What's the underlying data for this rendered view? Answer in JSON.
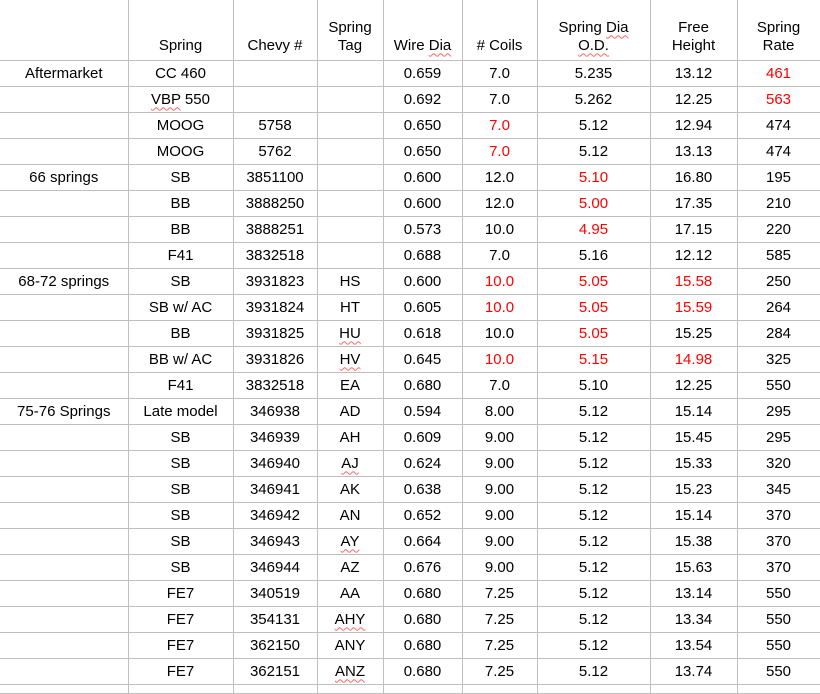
{
  "app": {
    "title": "Chevy spring specifications spreadsheet",
    "colors": {
      "gridline": "#bfbfbf",
      "highlight_red": "#ff0000",
      "spellcheck_squiggle": "#ff6666",
      "text": "#000000",
      "background": "#ffffff"
    }
  },
  "table": {
    "headers": [
      {
        "name": "group",
        "lines": [
          [
            {
              "t": ""
            }
          ]
        ]
      },
      {
        "name": "spring",
        "lines": [
          [
            {
              "t": "Spring"
            }
          ]
        ]
      },
      {
        "name": "chevy-number",
        "lines": [
          [
            {
              "t": "Chevy #"
            }
          ]
        ]
      },
      {
        "name": "spring-tag",
        "lines": [
          [
            {
              "t": "Spring"
            }
          ],
          [
            {
              "t": "Tag"
            }
          ]
        ]
      },
      {
        "name": "wire-dia",
        "lines": [
          [
            {
              "t": "Wire "
            },
            {
              "t": "Dia",
              "sq": true
            }
          ]
        ]
      },
      {
        "name": "num-coils",
        "lines": [
          [
            {
              "t": "# Coils"
            }
          ]
        ]
      },
      {
        "name": "spring-dia-od",
        "lines": [
          [
            {
              "t": "Spring "
            },
            {
              "t": "Dia",
              "sq": true
            }
          ],
          [
            {
              "t": "O.D.",
              "sq": true
            }
          ]
        ]
      },
      {
        "name": "free-height",
        "lines": [
          [
            {
              "t": "Free"
            }
          ],
          [
            {
              "t": "Height"
            }
          ]
        ]
      },
      {
        "name": "spring-rate",
        "lines": [
          [
            {
              "t": "Spring"
            }
          ],
          [
            {
              "t": "Rate"
            }
          ]
        ]
      }
    ],
    "rows": [
      [
        "Aftermarket",
        "CC 460",
        "",
        "",
        "0.659",
        "7.0",
        "5.235",
        "13.12",
        {
          "t": "461",
          "cls": "red"
        }
      ],
      [
        "",
        {
          "parts": [
            {
              "t": "VBP",
              "sq": true
            },
            {
              "t": " 550"
            }
          ]
        },
        "",
        "",
        "0.692",
        "7.0",
        "5.262",
        "12.25",
        {
          "t": "563",
          "cls": "red"
        }
      ],
      [
        "",
        "MOOG",
        "5758",
        "",
        "0.650",
        {
          "t": "7.0",
          "cls": "red"
        },
        "5.12",
        "12.94",
        "474"
      ],
      [
        "",
        "MOOG",
        "5762",
        "",
        "0.650",
        {
          "t": "7.0",
          "cls": "red"
        },
        "5.12",
        "13.13",
        "474"
      ],
      [
        "66 springs",
        "SB",
        "3851100",
        "",
        "0.600",
        "12.0",
        {
          "t": "5.10",
          "cls": "red"
        },
        "16.80",
        "195"
      ],
      [
        "",
        "BB",
        "3888250",
        "",
        "0.600",
        "12.0",
        {
          "t": "5.00",
          "cls": "red"
        },
        "17.35",
        "210"
      ],
      [
        "",
        "BB",
        "3888251",
        "",
        "0.573",
        "10.0",
        {
          "t": "4.95",
          "cls": "red"
        },
        "17.15",
        "220"
      ],
      [
        "",
        "F41",
        "3832518",
        "",
        "0.688",
        "7.0",
        "5.16",
        "12.12",
        "585"
      ],
      [
        "68-72 springs",
        "SB",
        "3931823",
        "HS",
        "0.600",
        {
          "t": "10.0",
          "cls": "red"
        },
        {
          "t": "5.05",
          "cls": "red"
        },
        {
          "t": "15.58",
          "cls": "red"
        },
        "250"
      ],
      [
        "",
        "SB w/ AC",
        "3931824",
        "HT",
        "0.605",
        {
          "t": "10.0",
          "cls": "red"
        },
        {
          "t": "5.05",
          "cls": "red"
        },
        {
          "t": "15.59",
          "cls": "red"
        },
        "264"
      ],
      [
        "",
        "BB",
        "3931825",
        {
          "t": "HU",
          "sq": true
        },
        "0.618",
        "10.0",
        {
          "t": "5.05",
          "cls": "red"
        },
        {
          "t": "15.25",
          "cls": "bold"
        },
        "284"
      ],
      [
        "",
        "BB w/ AC",
        "3931826",
        {
          "t": "HV",
          "sq": true
        },
        "0.645",
        {
          "t": "10.0",
          "cls": "red"
        },
        {
          "t": "5.15",
          "cls": "red"
        },
        {
          "t": "14.98",
          "cls": "red"
        },
        "325"
      ],
      [
        "",
        "F41",
        "3832518",
        "EA",
        "0.680",
        "7.0",
        "5.10",
        "12.25",
        "550"
      ],
      [
        "75-76 Springs",
        "Late model",
        "346938",
        "AD",
        "0.594",
        "8.00",
        "5.12",
        "15.14",
        "295"
      ],
      [
        "",
        "SB",
        "346939",
        "AH",
        "0.609",
        "9.00",
        "5.12",
        "15.45",
        "295"
      ],
      [
        "",
        "SB",
        "346940",
        {
          "t": "AJ",
          "sq": true
        },
        "0.624",
        "9.00",
        "5.12",
        "15.33",
        "320"
      ],
      [
        "",
        "SB",
        "346941",
        "AK",
        "0.638",
        "9.00",
        "5.12",
        "15.23",
        "345"
      ],
      [
        "",
        "SB",
        "346942",
        "AN",
        "0.652",
        "9.00",
        "5.12",
        "15.14",
        "370"
      ],
      [
        "",
        "SB",
        "346943",
        {
          "t": "AY",
          "sq": true
        },
        "0.664",
        "9.00",
        "5.12",
        "15.38",
        "370"
      ],
      [
        "",
        "SB",
        "346944",
        "AZ",
        "0.676",
        "9.00",
        "5.12",
        "15.63",
        "370"
      ],
      [
        "",
        "FE7",
        "340519",
        "AA",
        "0.680",
        "7.25",
        "5.12",
        "13.14",
        "550"
      ],
      [
        "",
        "FE7",
        "354131",
        {
          "t": "AHY",
          "sq": true
        },
        "0.680",
        "7.25",
        "5.12",
        "13.34",
        "550"
      ],
      [
        "",
        "FE7",
        "362150",
        "ANY",
        "0.680",
        "7.25",
        "5.12",
        "13.54",
        "550"
      ],
      [
        "",
        "FE7",
        "362151",
        {
          "t": "ANZ",
          "sq": true
        },
        "0.680",
        "7.25",
        "5.12",
        "13.74",
        "550"
      ]
    ]
  }
}
